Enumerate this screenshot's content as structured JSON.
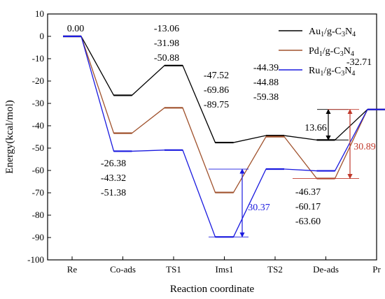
{
  "chart_data": {
    "type": "line",
    "xlabel": "Reaction coordinate",
    "ylabel": "Energy(kcal/mol)",
    "ylim": [
      -100,
      10
    ],
    "yticks": [
      10,
      0,
      -10,
      -20,
      -30,
      -40,
      -50,
      -60,
      -70,
      -80,
      -90,
      -100
    ],
    "categories": [
      "Re",
      "Co-ads",
      "TS1",
      "Ims1",
      "TS2",
      "De-ads",
      "Pr"
    ],
    "legend_position": "top-right",
    "series": [
      {
        "name": "Au1/g-C3N4",
        "label_main": "Au",
        "label_sub1": "1",
        "label_mid": "/g-C",
        "label_sub2": "3",
        "label_mid2": "N",
        "label_sub3": "4",
        "color": "#000000",
        "values": [
          0.0,
          -26.38,
          -13.06,
          -47.52,
          -44.39,
          -46.37,
          -32.71
        ]
      },
      {
        "name": "Pd1/g-C3N4",
        "label_main": "Pd",
        "label_sub1": "1",
        "label_mid": "/g-C",
        "label_sub2": "3",
        "label_mid2": "N",
        "label_sub3": "4",
        "color": "#a0522d",
        "values": [
          0.0,
          -43.32,
          -31.98,
          -69.86,
          -44.88,
          -63.6,
          -32.71
        ]
      },
      {
        "name": "Ru1/g-C3N4",
        "label_main": "Ru",
        "label_sub1": "1",
        "label_mid": "/g-C",
        "label_sub2": "3",
        "label_mid2": "N",
        "label_sub3": "4",
        "color": "#1a1adf",
        "values": [
          0.0,
          -51.38,
          -50.88,
          -89.75,
          -59.38,
          -60.17,
          -32.71
        ]
      }
    ],
    "annotations": [
      {
        "text": "0.00",
        "color": "#000000"
      },
      {
        "text": "-13.06",
        "color": "#000000"
      },
      {
        "text": "-31.98",
        "color": "#000000"
      },
      {
        "text": "-50.88",
        "color": "#000000"
      },
      {
        "text": "-47.52",
        "color": "#000000"
      },
      {
        "text": "-69.86",
        "color": "#000000"
      },
      {
        "text": "-89.75",
        "color": "#000000"
      },
      {
        "text": "-44.39",
        "color": "#000000"
      },
      {
        "text": "-44.88",
        "color": "#000000"
      },
      {
        "text": "-59.38",
        "color": "#000000"
      },
      {
        "text": "-32.71",
        "color": "#000000"
      },
      {
        "text": "-26.38",
        "color": "#000000"
      },
      {
        "text": "-43.32",
        "color": "#000000"
      },
      {
        "text": "-51.38",
        "color": "#000000"
      },
      {
        "text": "-46.37",
        "color": "#000000"
      },
      {
        "text": "-60.17",
        "color": "#000000"
      },
      {
        "text": "-63.60",
        "color": "#000000"
      },
      {
        "text": "13.66",
        "color": "#000000"
      },
      {
        "text": "30.89",
        "color": "#c0392b"
      },
      {
        "text": "30.37",
        "color": "#1a1adf"
      }
    ],
    "barriers": [
      {
        "label": "13.66",
        "color": "#000000",
        "from": -46.37,
        "to": -32.71,
        "at": "De-ads"
      },
      {
        "label": "30.89",
        "color": "#c0392b",
        "from": -63.6,
        "to": -32.71,
        "at": "Pr"
      },
      {
        "label": "30.37",
        "color": "#1a1adf",
        "from": -89.75,
        "to": -59.38,
        "at": "TS2"
      }
    ]
  }
}
